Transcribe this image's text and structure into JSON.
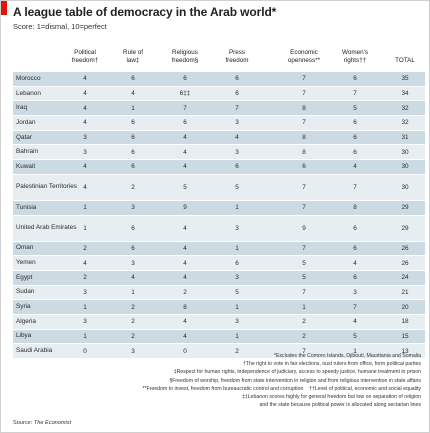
{
  "header": {
    "title": "A league table of democracy in the Arab world*",
    "subtitle": "Score: 1=dismal, 10=perfect"
  },
  "columns": [
    {
      "key": "political",
      "line1": "Political",
      "line2": "freedom†"
    },
    {
      "key": "law",
      "line1": "Rule of",
      "line2": "law‡"
    },
    {
      "key": "religious",
      "line1": "Religious",
      "line2": "freedom§"
    },
    {
      "key": "press",
      "line1": "Press",
      "line2": "freedom"
    },
    {
      "key": "economic",
      "line1": "Economic",
      "line2": "openness**"
    },
    {
      "key": "women",
      "line1": "Women's",
      "line2": "rights††"
    },
    {
      "key": "total",
      "line1": "",
      "line2": "TOTAL"
    }
  ],
  "rows": [
    {
      "country": "Morocco",
      "values": [
        "4",
        "6",
        "6",
        "6",
        "7",
        "6",
        "35"
      ]
    },
    {
      "country": "Lebanon",
      "values": [
        "4",
        "4",
        "6‡‡",
        "6",
        "7",
        "7",
        "34"
      ]
    },
    {
      "country": "Iraq",
      "values": [
        "4",
        "1",
        "7",
        "7",
        "8",
        "5",
        "32"
      ]
    },
    {
      "country": "Jordan",
      "values": [
        "4",
        "6",
        "6",
        "3",
        "7",
        "6",
        "32"
      ]
    },
    {
      "country": "Qatar",
      "values": [
        "3",
        "6",
        "4",
        "4",
        "8",
        "6",
        "31"
      ]
    },
    {
      "country": "Bahrain",
      "values": [
        "3",
        "6",
        "4",
        "3",
        "8",
        "6",
        "30"
      ]
    },
    {
      "country": "Kuwait",
      "values": [
        "4",
        "6",
        "4",
        "6",
        "6",
        "4",
        "30"
      ]
    },
    {
      "country": "Palestinian Territories",
      "values": [
        "4",
        "2",
        "5",
        "5",
        "7",
        "7",
        "30"
      ]
    },
    {
      "country": "Tunisia",
      "values": [
        "1",
        "3",
        "9",
        "1",
        "7",
        "8",
        "29"
      ]
    },
    {
      "country": "United Arab Emirates",
      "values": [
        "1",
        "6",
        "4",
        "3",
        "9",
        "6",
        "29"
      ]
    },
    {
      "country": "Oman",
      "values": [
        "2",
        "6",
        "4",
        "1",
        "7",
        "6",
        "26"
      ]
    },
    {
      "country": "Yemen",
      "values": [
        "4",
        "3",
        "4",
        "6",
        "5",
        "4",
        "26"
      ]
    },
    {
      "country": "Egypt",
      "values": [
        "2",
        "4",
        "4",
        "3",
        "5",
        "6",
        "24"
      ]
    },
    {
      "country": "Sudan",
      "values": [
        "3",
        "1",
        "2",
        "5",
        "7",
        "3",
        "21"
      ]
    },
    {
      "country": "Syria",
      "values": [
        "1",
        "2",
        "8",
        "1",
        "1",
        "7",
        "20"
      ]
    },
    {
      "country": "Algeria",
      "values": [
        "3",
        "2",
        "4",
        "3",
        "2",
        "4",
        "18"
      ]
    },
    {
      "country": "Libya",
      "values": [
        "1",
        "2",
        "4",
        "1",
        "2",
        "5",
        "15"
      ]
    },
    {
      "country": "Saudi Arabia",
      "values": [
        "0",
        "3",
        "0",
        "2",
        "7",
        "1",
        "13"
      ]
    }
  ],
  "footnotes": [
    "*Excludes the Comoro Islands, Djibouti, Mauritania and Somalia",
    "†The right to vote in fair elections, oust rulers from office, form political parties",
    "‡Respect for human rights, independence of judiciary, access to speedy justice, humane treatment in prison",
    "§Freedom of worship, freedom from state intervention in religion and from religious intervention in state affairs",
    "**Freedom to invest, freedom from bureaucratic control and corruption    ††Level of political, economic and social equality",
    "‡‡Lebanon scores highly for general freedom but low on separation of religion",
    "and the state because political power is allocated along sectarian lines"
  ],
  "source": {
    "label": "Source: ",
    "name": "The Economist"
  },
  "colors": {
    "accent": "#e3120b",
    "row_dark": "#ccdbe3",
    "row_light": "#e6eef2"
  }
}
